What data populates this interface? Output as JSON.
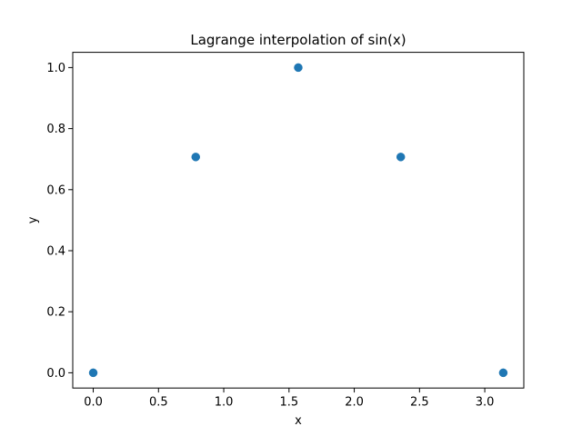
{
  "chart_data": {
    "type": "scatter",
    "title": "Lagrange interpolation of sin(x)",
    "xlabel": "x",
    "ylabel": "y",
    "xlim": [
      -0.157,
      3.299
    ],
    "ylim": [
      -0.05,
      1.05
    ],
    "xticks": [
      0.0,
      0.5,
      1.0,
      1.5,
      2.0,
      2.5,
      3.0
    ],
    "xtick_labels": [
      "0.0",
      "0.5",
      "1.0",
      "1.5",
      "2.0",
      "2.5",
      "3.0"
    ],
    "yticks": [
      0.0,
      0.2,
      0.4,
      0.6,
      0.8,
      1.0
    ],
    "ytick_labels": [
      "0.0",
      "0.2",
      "0.4",
      "0.6",
      "0.8",
      "1.0"
    ],
    "grid": false,
    "series": [
      {
        "color": "#1f77b4",
        "x": [
          0.0,
          0.7854,
          1.5708,
          2.3562,
          3.1416
        ],
        "y": [
          0.0,
          0.7071,
          1.0,
          0.7071,
          0.0
        ]
      }
    ]
  }
}
